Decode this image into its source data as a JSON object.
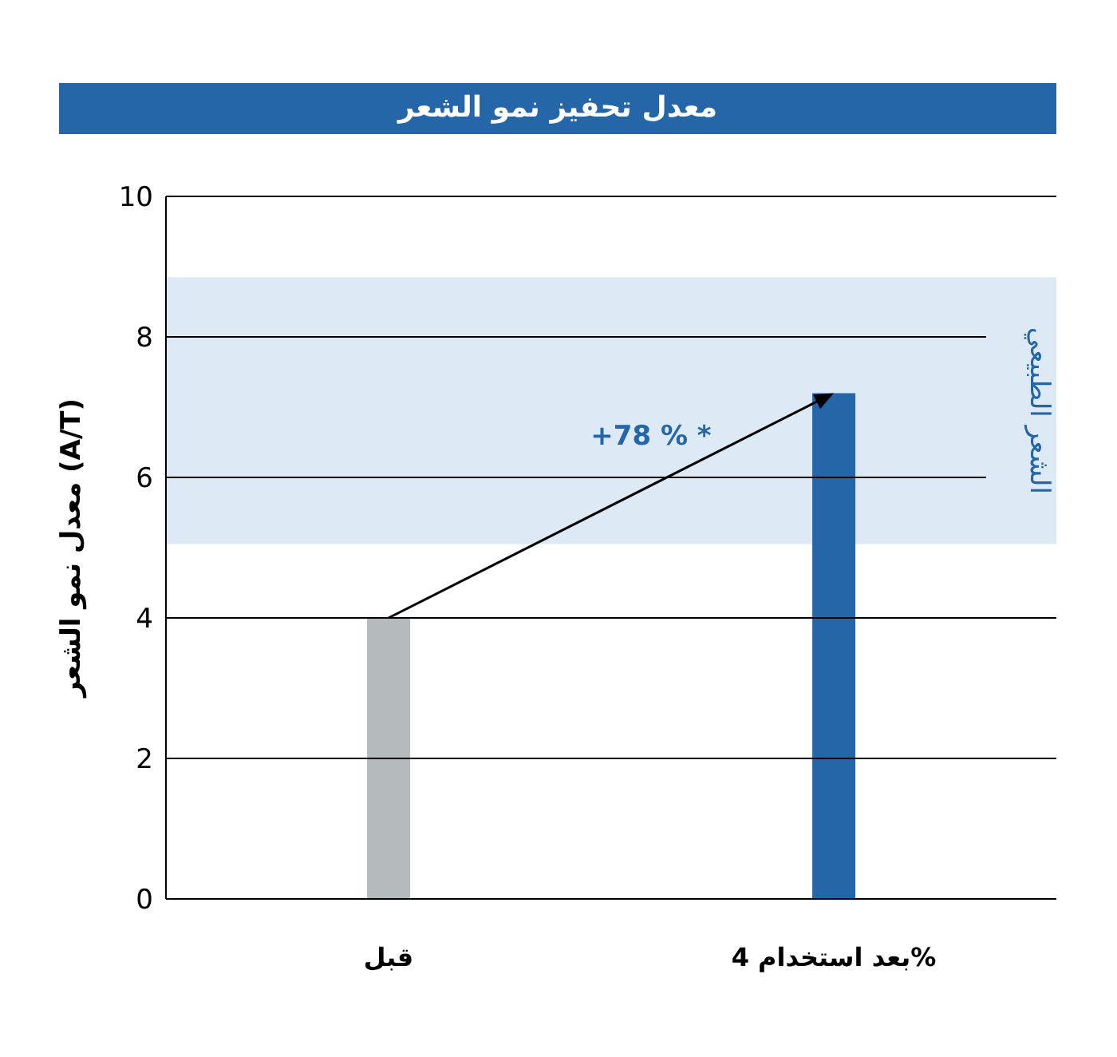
{
  "chart_data": {
    "type": "bar",
    "title": "معدل تحفيز نمو الشعر",
    "ylabel": "معدل نمو الشعر (A/T)",
    "categories": [
      "قبل",
      "بعد استخدام 4%"
    ],
    "values": [
      4,
      7.2
    ],
    "colors": [
      "#b5babd",
      "#2566a8"
    ],
    "ylim": [
      0,
      10
    ],
    "yticks": [
      0,
      2,
      4,
      6,
      8,
      10
    ],
    "grid": "y",
    "bands": [
      {
        "axis": "y",
        "from": 5.05,
        "to": 8.85,
        "label": "الشعر الطبيعي",
        "color": "#dde9f5"
      }
    ],
    "annotations": [
      "+78 % *"
    ]
  }
}
